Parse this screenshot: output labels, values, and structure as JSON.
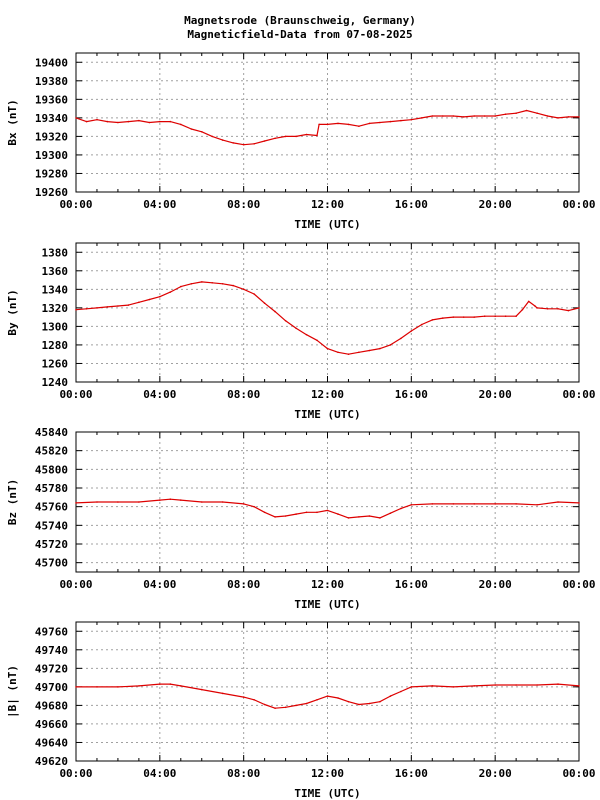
{
  "title": "Magnetsrode (Braunschweig, Germany)",
  "subtitle": "Magneticfield-Data from 07-08-2025",
  "colors": {
    "series": "#dd0000",
    "grid": "#a0a0a0",
    "axis": "#000000"
  },
  "chart_data": [
    {
      "type": "line",
      "ylabel": "Bx (nT)",
      "xlabel": "TIME (UTC)",
      "xlim": [
        0,
        24
      ],
      "ylim": [
        19260,
        19410
      ],
      "yticks": [
        19260,
        19280,
        19300,
        19320,
        19340,
        19360,
        19380,
        19400
      ],
      "xtick_labels": [
        "00:00",
        "04:00",
        "08:00",
        "12:00",
        "16:00",
        "20:00",
        "00:00"
      ],
      "grid": true,
      "x": [
        0,
        0.5,
        1,
        1.5,
        2,
        2.5,
        3,
        3.5,
        4,
        4.5,
        5,
        5.5,
        6,
        6.5,
        7,
        7.5,
        8,
        8.5,
        9,
        9.5,
        10,
        10.5,
        11,
        11.5,
        11.6,
        12,
        12.5,
        13,
        13.5,
        14,
        14.5,
        15,
        15.5,
        16,
        16.5,
        17,
        17.5,
        18,
        18.5,
        19,
        19.5,
        20,
        20.5,
        21,
        21.5,
        22,
        22.5,
        23,
        23.5,
        24
      ],
      "values": [
        19340,
        19336,
        19338,
        19336,
        19335,
        19336,
        19337,
        19335,
        19336,
        19336,
        19333,
        19328,
        19325,
        19320,
        19316,
        19313,
        19311,
        19312,
        19315,
        19318,
        19320,
        19320,
        19322,
        19321,
        19333,
        19333,
        19334,
        19333,
        19331,
        19334,
        19335,
        19336,
        19337,
        19338,
        19340,
        19342,
        19342,
        19342,
        19341,
        19342,
        19342,
        19342,
        19344,
        19345,
        19348,
        19345,
        19342,
        19340,
        19341,
        19341
      ]
    },
    {
      "type": "line",
      "ylabel": "By (nT)",
      "xlabel": "TIME (UTC)",
      "xlim": [
        0,
        24
      ],
      "ylim": [
        1240,
        1390
      ],
      "yticks": [
        1240,
        1260,
        1280,
        1300,
        1320,
        1340,
        1360,
        1380
      ],
      "xtick_labels": [
        "00:00",
        "04:00",
        "08:00",
        "12:00",
        "16:00",
        "20:00",
        "00:00"
      ],
      "grid": true,
      "x": [
        0,
        0.5,
        1,
        1.5,
        2,
        2.5,
        3,
        3.5,
        4,
        4.5,
        5,
        5.5,
        6,
        6.5,
        7,
        7.5,
        8,
        8.5,
        9,
        9.5,
        10,
        10.5,
        11,
        11.5,
        12,
        12.5,
        13,
        13.5,
        14,
        14.5,
        15,
        15.5,
        16,
        16.5,
        17,
        17.5,
        18,
        18.5,
        19,
        19.5,
        20,
        20.5,
        21,
        21.3,
        21.6,
        21.9,
        22,
        22.5,
        23,
        23.5,
        24
      ],
      "values": [
        1318,
        1319,
        1320,
        1321,
        1322,
        1323,
        1326,
        1329,
        1332,
        1337,
        1343,
        1346,
        1348,
        1347,
        1346,
        1344,
        1340,
        1335,
        1325,
        1316,
        1306,
        1298,
        1291,
        1285,
        1276,
        1272,
        1270,
        1272,
        1274,
        1276,
        1280,
        1287,
        1295,
        1302,
        1307,
        1309,
        1310,
        1310,
        1310,
        1311,
        1311,
        1311,
        1311,
        1318,
        1327,
        1322,
        1320,
        1319,
        1319,
        1317,
        1320
      ]
    },
    {
      "type": "line",
      "ylabel": "Bz (nT)",
      "xlabel": "TIME (UTC)",
      "xlim": [
        0,
        24
      ],
      "ylim": [
        45690,
        45840
      ],
      "yticks": [
        45700,
        45720,
        45740,
        45760,
        45780,
        45800,
        45820,
        45840
      ],
      "xtick_labels": [
        "00:00",
        "04:00",
        "08:00",
        "12:00",
        "16:00",
        "20:00",
        "00:00"
      ],
      "grid": true,
      "x": [
        0,
        1,
        2,
        3,
        4,
        4.5,
        5,
        6,
        7,
        8,
        8.5,
        9,
        9.5,
        10,
        10.5,
        11,
        11.5,
        12,
        12.5,
        13,
        13.5,
        14,
        14.5,
        15,
        15.5,
        16,
        17,
        18,
        19,
        20,
        21,
        22,
        23,
        24
      ],
      "values": [
        45764,
        45765,
        45765,
        45765,
        45767,
        45768,
        45767,
        45765,
        45765,
        45763,
        45760,
        45754,
        45749,
        45750,
        45752,
        45754,
        45754,
        45756,
        45752,
        45748,
        45749,
        45750,
        45748,
        45753,
        45758,
        45762,
        45763,
        45763,
        45763,
        45763,
        45763,
        45762,
        45765,
        45764
      ]
    },
    {
      "type": "line",
      "ylabel": "|B| (nT)",
      "xlabel": "TIME (UTC)",
      "xlim": [
        0,
        24
      ],
      "ylim": [
        49620,
        49770
      ],
      "yticks": [
        49620,
        49640,
        49660,
        49680,
        49700,
        49720,
        49740,
        49760
      ],
      "xtick_labels": [
        "00:00",
        "04:00",
        "08:00",
        "12:00",
        "16:00",
        "20:00",
        "00:00"
      ],
      "grid": true,
      "x": [
        0,
        1,
        2,
        3,
        4,
        4.5,
        5,
        6,
        7,
        8,
        8.5,
        9,
        9.5,
        10,
        10.5,
        11,
        11.5,
        12,
        12.5,
        13,
        13.5,
        14,
        14.5,
        15,
        15.5,
        16,
        17,
        18,
        19,
        20,
        21,
        22,
        23,
        24
      ],
      "values": [
        49700,
        49700,
        49700,
        49701,
        49703,
        49703,
        49701,
        49697,
        49693,
        49689,
        49686,
        49681,
        49677,
        49678,
        49680,
        49682,
        49686,
        49690,
        49688,
        49684,
        49681,
        49682,
        49684,
        49690,
        49695,
        49700,
        49701,
        49700,
        49701,
        49702,
        49702,
        49702,
        49703,
        49701
      ]
    }
  ]
}
